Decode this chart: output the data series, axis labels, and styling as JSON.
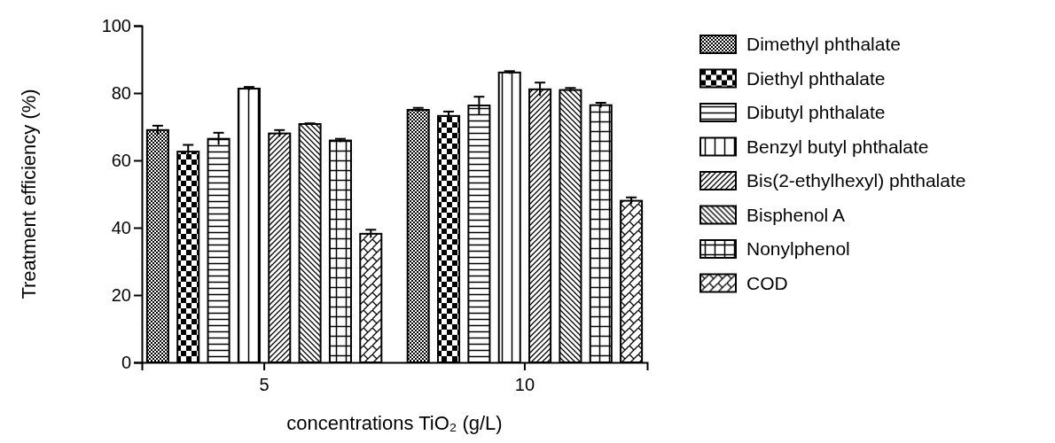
{
  "chart_data": {
    "type": "bar",
    "xlabel": "concentrations TiO₂ (g/L)",
    "ylabel": "Treatment efficiency (%)",
    "categories": [
      "5",
      "10"
    ],
    "ylim": [
      0,
      100
    ],
    "yticks": [
      0,
      20,
      40,
      60,
      80,
      100
    ],
    "legend": "right",
    "grid": false,
    "series": [
      {
        "name": "Dimethyl phthalate",
        "color": "#000000",
        "values": [
          69.0,
          75.0
        ],
        "errors": [
          1.3,
          0.6
        ]
      },
      {
        "name": "Diethyl phthalate",
        "color": "#000000",
        "values": [
          62.6,
          73.2
        ],
        "errors": [
          2.0,
          1.3
        ]
      },
      {
        "name": "Dibutyl phthalate",
        "color": "#000000",
        "values": [
          66.4,
          76.3
        ],
        "errors": [
          1.8,
          2.6
        ]
      },
      {
        "name": "Benzyl butyl phthalate",
        "color": "#000000",
        "values": [
          81.3,
          86.1
        ],
        "errors": [
          0.5,
          0.4
        ]
      },
      {
        "name": "Bis(2-ethylhexyl) phthalate",
        "color": "#000000",
        "values": [
          68.0,
          81.1
        ],
        "errors": [
          1.0,
          2.0
        ]
      },
      {
        "name": "Bisphenol A",
        "color": "#000000",
        "values": [
          70.8,
          80.9
        ],
        "errors": [
          0.2,
          0.6
        ]
      },
      {
        "name": "Nonylphenol",
        "color": "#000000",
        "values": [
          65.9,
          76.4
        ],
        "errors": [
          0.5,
          0.7
        ]
      },
      {
        "name": "COD",
        "color": "#000000",
        "values": [
          38.2,
          48.0
        ],
        "errors": [
          1.2,
          1.0
        ]
      }
    ]
  }
}
